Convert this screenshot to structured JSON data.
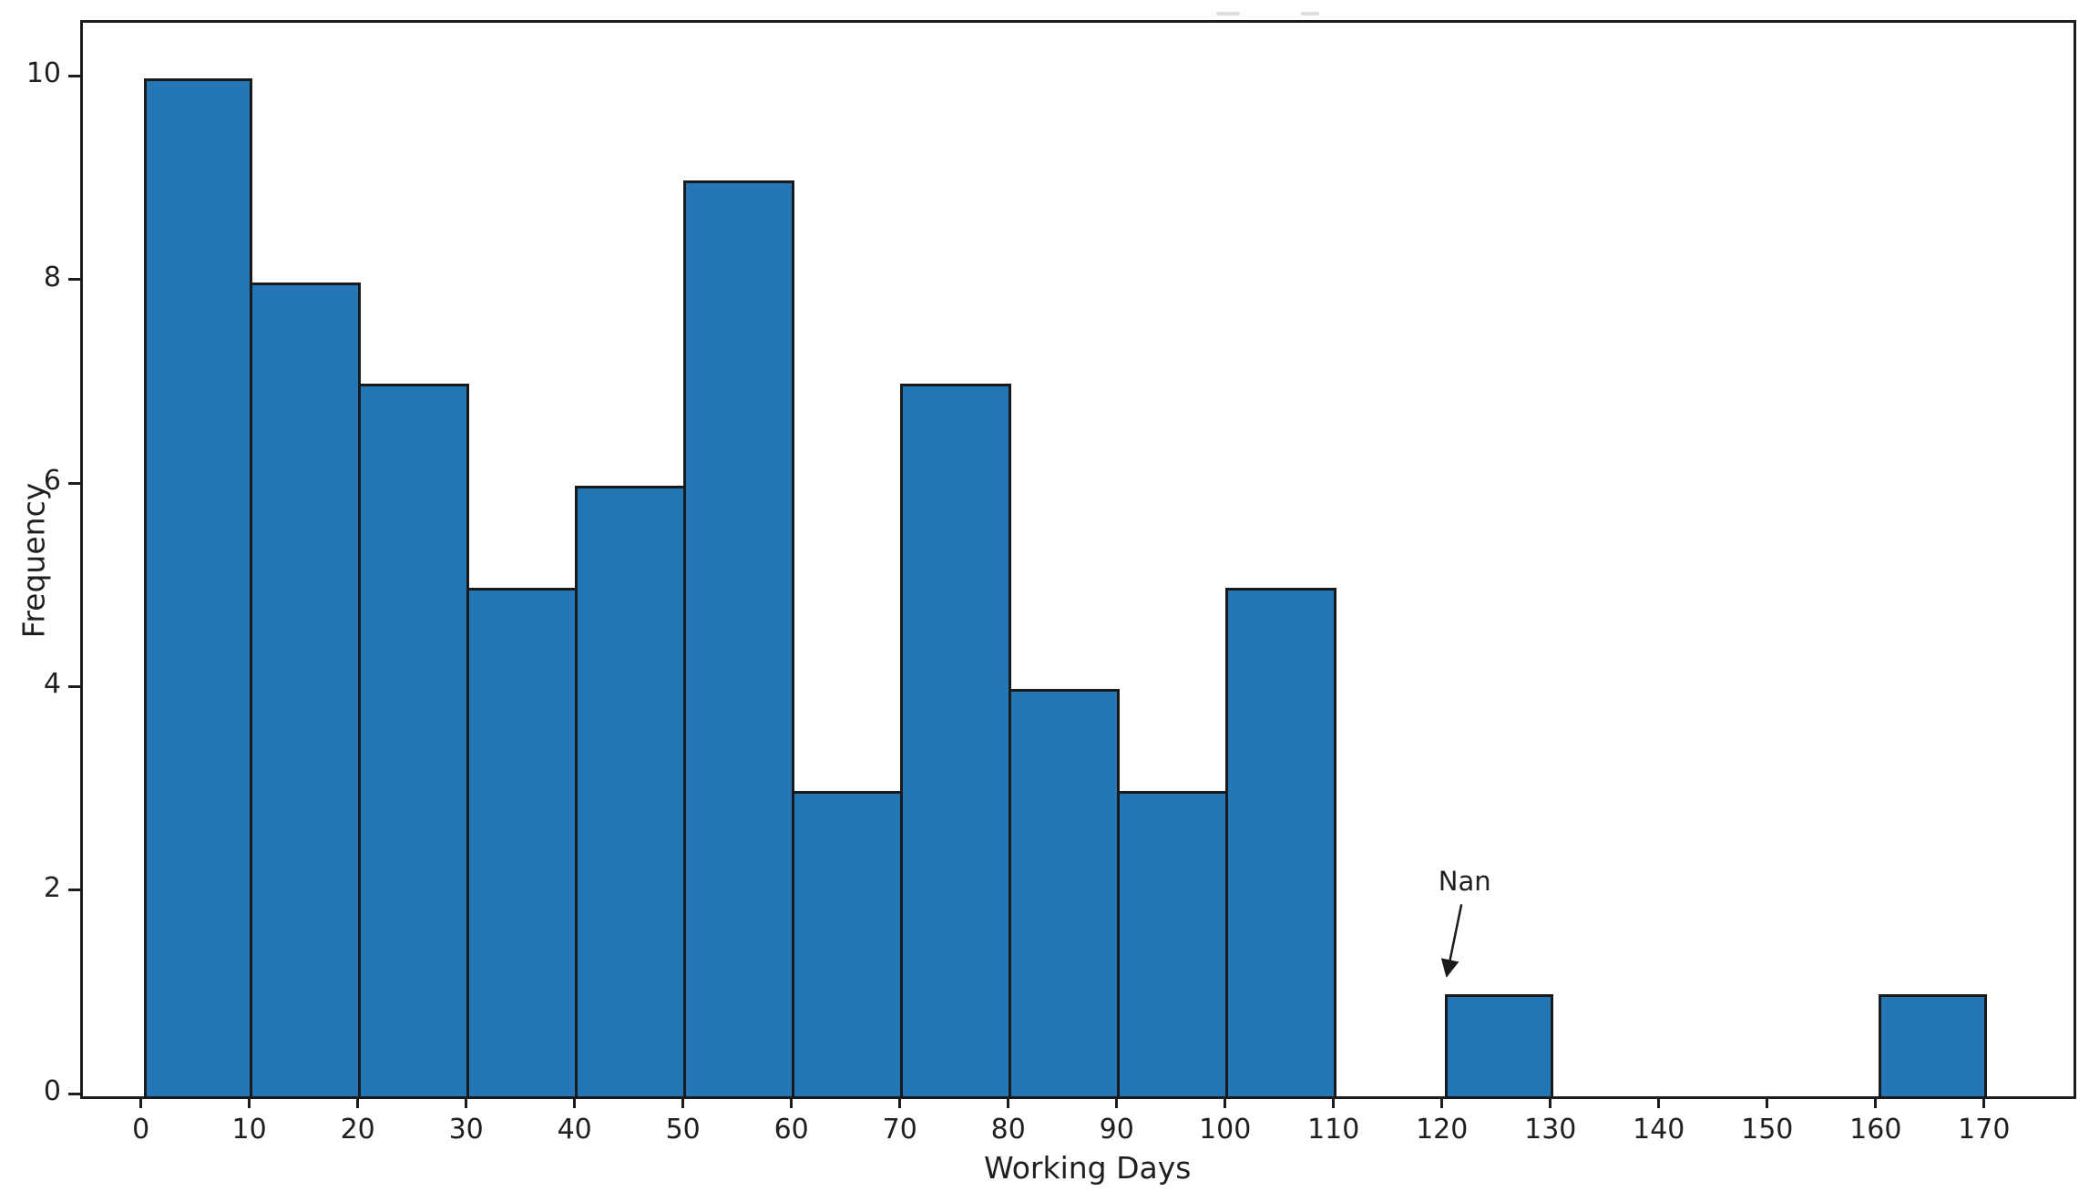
{
  "chart_data": {
    "type": "bar",
    "subtype": "histogram",
    "title": "",
    "xlabel": "Working Days",
    "ylabel": "Frequency",
    "bin_width": 10,
    "bin_edges": [
      0,
      10,
      20,
      30,
      40,
      50,
      60,
      70,
      80,
      90,
      100,
      110,
      120,
      130,
      140,
      150,
      160,
      170
    ],
    "categories": [
      "0-10",
      "10-20",
      "20-30",
      "30-40",
      "40-50",
      "50-60",
      "60-70",
      "70-80",
      "80-90",
      "90-100",
      "100-110",
      "110-120",
      "120-130",
      "130-140",
      "140-150",
      "150-160",
      "160-170"
    ],
    "values": [
      10,
      8,
      7,
      5,
      6,
      9,
      3,
      7,
      4,
      3,
      5,
      0,
      1,
      0,
      0,
      0,
      1
    ],
    "x_ticks": [
      0,
      10,
      20,
      30,
      40,
      50,
      60,
      70,
      80,
      90,
      100,
      110,
      120,
      130,
      140,
      150,
      160,
      170
    ],
    "y_ticks": [
      0,
      2,
      4,
      6,
      8,
      10
    ],
    "xlim": [
      -5.6,
      178
    ],
    "ylim": [
      0,
      10.55
    ],
    "grid": false,
    "legend": null,
    "bar_fill_color": "#2277b4",
    "bar_edge_color": "#1a1a1a",
    "axis_color": "#1c1c1c",
    "text_color": "#1f1f1f",
    "annotation": {
      "text": "Nan",
      "text_xy": [
        122.1,
        2.09
      ],
      "arrow_start_xy": [
        121.8,
        1.86
      ],
      "arrow_end_xy": [
        120.45,
        1.16
      ],
      "points_to_bin": "120-130"
    }
  }
}
